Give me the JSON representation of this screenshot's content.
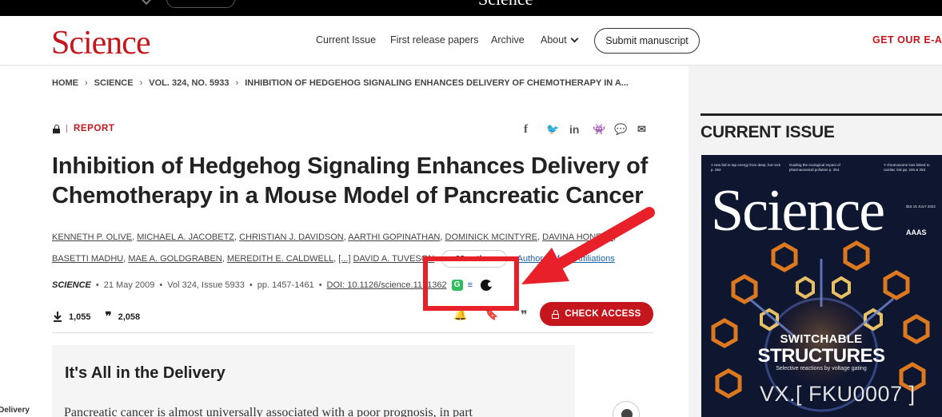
{
  "site": {
    "logo": "Science",
    "nav": [
      "Current Issue",
      "First release papers",
      "Archive",
      "About"
    ],
    "submit_label": "Submit manuscript",
    "ealerts_label": "GET OUR E-ALE"
  },
  "breadcrumb": [
    "HOME",
    "SCIENCE",
    "VOL. 324, NO. 5933",
    "INHIBITION OF HEDGEHOG SIGNALING ENHANCES DELIVERY OF CHEMOTHERAPY IN A..."
  ],
  "article": {
    "type": "REPORT",
    "title_line1": "Inhibition of Hedgehog Signaling Enhances Delivery of",
    "title_line2": "Chemotherapy in a Mouse Model of Pancreatic Cancer",
    "authors_line1": [
      "KENNETH P. OLIVE",
      "MICHAEL A. JACOBETZ",
      "CHRISTIAN J. DAVIDSON",
      "AARTHI GOPINATHAN",
      "DOMINICK MCINTYRE",
      "DAVINA HONESS"
    ],
    "authors_line2": [
      "BASETTI MADHU",
      "MAE A. GOLDGRABEN",
      "MEREDITH E. CALDWELL",
      "[...]",
      "DAVID A. TUVESON"
    ],
    "more_authors": "+28 authors",
    "affiliations_link": "Authors Info & Affiliations",
    "journal": "SCIENCE",
    "date": "21 May 2009",
    "volume": "Vol 324, Issue 5933",
    "pages": "pp. 1457-1461",
    "doi": "DOI: 10.1126/science.1171362",
    "downloads": "1,055",
    "citations": "2,058",
    "check_access": "CHECK ACCESS"
  },
  "share_icons": [
    "facebook-icon",
    "twitter-icon",
    "linkedin-icon",
    "reddit-icon",
    "wechat-icon",
    "email-icon"
  ],
  "abstract": {
    "heading": "It's All in the Delivery",
    "text": "Pancreatic cancer is almost universally associated with a poor prognosis, in part",
    "left_edge_text": "Delivery"
  },
  "sidebar": {
    "heading": "CURRENT ISSUE",
    "cover": {
      "logo": "Science",
      "teasers": [
        "A new bid to tap energy from deep, hot rock p. 262",
        "Guiding the ecological impact of pharmaceutical pollution p. 254",
        "Y chromosome loss linked to cardiac risk pp. 246 & 253"
      ],
      "date": "$15 15 JULY 2022",
      "publisher": "AAAS",
      "headline1": "SWITCHABLE",
      "headline2": "STRUCTURES",
      "headline3": "Selective reactions by voltage gating"
    }
  },
  "watermark": "VX.[ FKU0007 ]",
  "colors": {
    "brand_red": "#c4161c",
    "annotation_red": "#e8202a",
    "cover_navy": "#0e1630"
  }
}
